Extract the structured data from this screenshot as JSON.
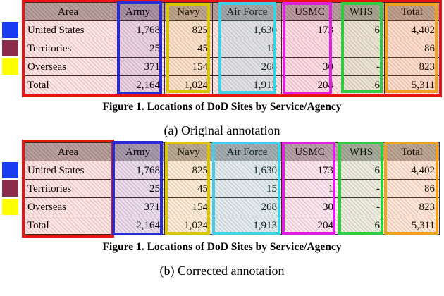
{
  "figure": {
    "table_caption": "Figure 1.  Locations of DoD Sites by Service/Agency",
    "panels": {
      "a": {
        "label": "(a) Original annotation"
      },
      "b": {
        "label": "(b) Corrected annotation"
      }
    }
  },
  "table": {
    "header": [
      "Area",
      "Army",
      "Navy",
      "Air Force",
      "USMC",
      "WHS",
      "Total"
    ],
    "rows": [
      [
        "United States",
        "1,768",
        "825",
        "1,630",
        "173",
        "6",
        "4,402"
      ],
      [
        "Territories",
        "25",
        "45",
        "15",
        "1",
        "-",
        "86"
      ],
      [
        "Overseas",
        "371",
        "154",
        "268",
        "30",
        "-",
        "823"
      ],
      [
        "Total",
        "2,164",
        "1,024",
        "1,913",
        "204",
        "6",
        "5,311"
      ]
    ]
  },
  "annotation_colors": {
    "table_box": "#e81414",
    "army_box": "#2b2bd6",
    "navy_box": "#d9c400",
    "air_force_box": "#3fd0e8",
    "usmc_box": "#e020e0",
    "whs_box": "#2ecc40",
    "total_box": "#f0a020"
  },
  "row_marker_colors": {
    "united_states": "#1a3cf0",
    "territories": "#8b2c4a",
    "overseas": "#ffff00"
  }
}
